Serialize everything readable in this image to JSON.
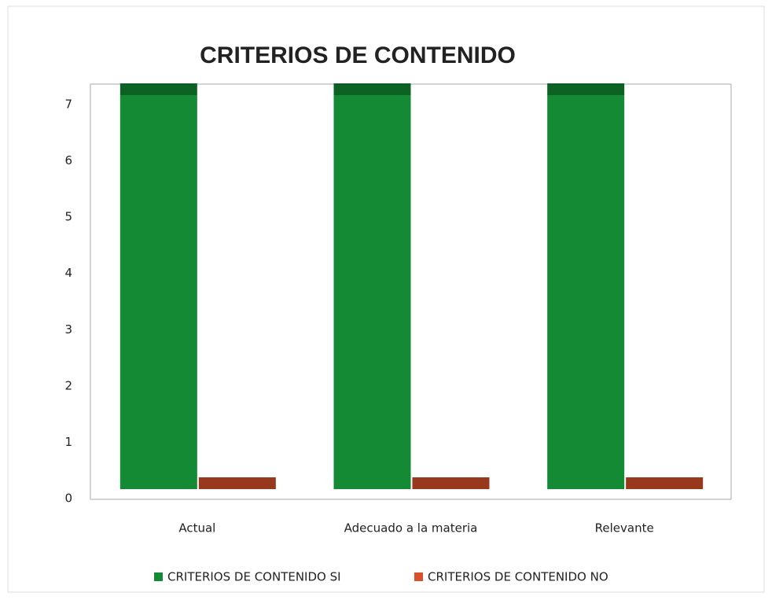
{
  "chart_data": {
    "type": "bar",
    "title": "CRITERIOS DE CONTENIDO",
    "categories": [
      "Actual",
      "Adecuado a la materia",
      "Relevante"
    ],
    "series": [
      {
        "name": "CRITERIOS DE CONTENIDO  SI",
        "color": "#148a35",
        "values": [
          7,
          7,
          7
        ]
      },
      {
        "name": "CRITERIOS DE CONTENIDO  NO",
        "color": "#d9502a",
        "values": [
          0,
          0,
          0
        ]
      }
    ],
    "ylim": [
      0,
      7
    ],
    "yticks": [
      0,
      1,
      2,
      3,
      4,
      5,
      6,
      7
    ],
    "grid": true,
    "legend": "bottom"
  }
}
